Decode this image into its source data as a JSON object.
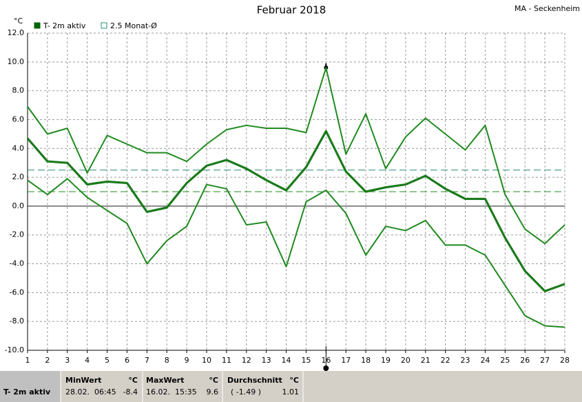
{
  "chart_data": {
    "type": "line",
    "title": "Februar 2018",
    "station": "MA - Seckenheim",
    "y_unit": "°C",
    "legend": [
      {
        "name": "T- 2m aktiv",
        "color": "#006400",
        "filled": true
      },
      {
        "name": "2.5 Monat-Ø",
        "color": "#2a8a7a",
        "filled": false
      }
    ],
    "x": [
      1,
      2,
      3,
      4,
      5,
      6,
      7,
      8,
      9,
      10,
      11,
      12,
      13,
      14,
      15,
      16,
      17,
      18,
      19,
      20,
      21,
      22,
      23,
      24,
      25,
      26,
      27,
      28
    ],
    "series": [
      {
        "color": "#1f8a1f",
        "values": [
          6.9,
          5.0,
          5.4,
          2.3,
          4.9,
          4.3,
          3.7,
          3.7,
          3.1,
          4.3,
          5.3,
          5.6,
          5.4,
          5.4,
          5.1,
          9.6,
          3.6,
          6.4,
          2.6,
          4.8,
          6.1,
          5.0,
          3.9,
          5.6,
          0.8,
          -1.6,
          -2.6,
          -1.3
        ]
      },
      {
        "color": "#1a7a1a",
        "values": [
          4.7,
          3.1,
          3.0,
          1.5,
          1.7,
          1.6,
          -0.4,
          -0.1,
          1.6,
          2.8,
          3.2,
          2.6,
          1.8,
          1.1,
          2.7,
          5.2,
          2.4,
          1.0,
          1.3,
          1.5,
          2.1,
          1.2,
          0.5,
          0.5,
          -2.2,
          -4.5,
          -5.9,
          -5.4
        ]
      },
      {
        "color": "#1f8a1f",
        "values": [
          1.8,
          0.8,
          1.9,
          0.6,
          -0.3,
          -1.2,
          -4.0,
          -2.4,
          -1.4,
          1.5,
          1.2,
          -1.3,
          -1.1,
          -4.2,
          0.3,
          1.1,
          -0.5,
          -3.4,
          -1.4,
          -1.7,
          -1.0,
          -2.7,
          -2.7,
          -3.4,
          -5.5,
          -7.6,
          -8.3,
          -8.4
        ]
      }
    ],
    "hlines": [
      {
        "value": 2.5,
        "color": "#2a8a7a"
      },
      {
        "value": 1.0,
        "color": "#1f8a1f"
      }
    ],
    "marker_x": 16,
    "xlim": [
      1,
      28
    ],
    "xticks": [
      1,
      2,
      3,
      4,
      5,
      6,
      7,
      8,
      9,
      10,
      11,
      12,
      13,
      14,
      15,
      16,
      17,
      18,
      19,
      20,
      21,
      22,
      23,
      24,
      25,
      26,
      27,
      28
    ],
    "ylim": [
      -10,
      12
    ],
    "yticks": [
      {
        "value": -10,
        "label": "-10.0"
      },
      {
        "value": -8,
        "label": "-8.0"
      },
      {
        "value": -6,
        "label": "-6.0"
      },
      {
        "value": -4,
        "label": "-4.0"
      },
      {
        "value": -2,
        "label": "-2.0"
      },
      {
        "value": 0,
        "label": "0.0"
      },
      {
        "value": 2,
        "label": "2.0"
      },
      {
        "value": 4,
        "label": "4.0"
      },
      {
        "value": 6,
        "label": "6.0"
      },
      {
        "value": 8,
        "label": "8.0"
      },
      {
        "value": 10,
        "label": "10.0"
      },
      {
        "value": 12,
        "label": "12.0"
      }
    ],
    "grid": true
  },
  "stats": {
    "label": "T- 2m aktiv",
    "headers": [
      "MinWert",
      "°C",
      "MaxWert",
      "°C",
      "Durchschnitt",
      "°C"
    ],
    "row": [
      "28.02.  06:45",
      "-8.4",
      "16.02.  15:35",
      "9.6",
      "( -1.49 )",
      "1.01"
    ]
  }
}
